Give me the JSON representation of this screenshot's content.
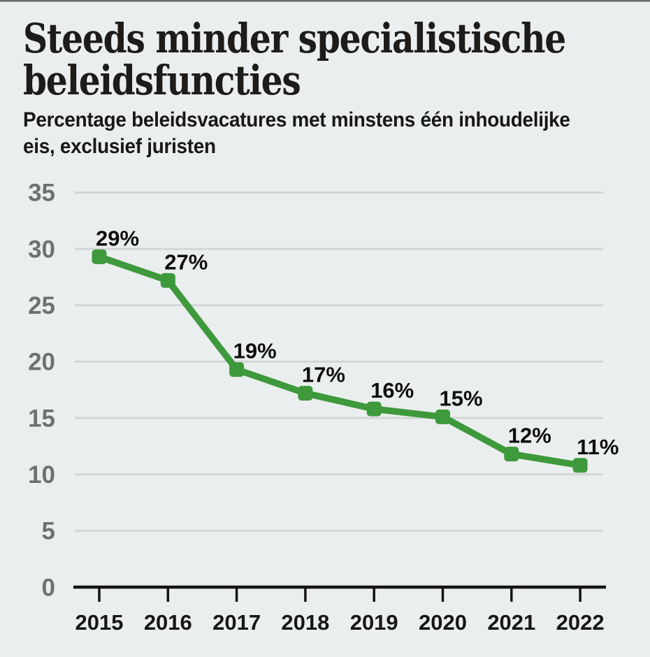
{
  "header": {
    "title_line1": "Steeds minder specialistische",
    "title_line2": "beleidsfuncties",
    "subtitle_line1": "Percentage beleidsvacatures met minstens één inhoudelijke",
    "subtitle_line2": "eis, exclusief juristen"
  },
  "colors": {
    "background": "#ebeeee",
    "topbar": "#667272",
    "line": "#3e993c",
    "marker": "#3e993c",
    "gridline": "#d2d6d5",
    "axis": "#141414",
    "y_tick_label": "#6c7272",
    "x_tick_label": "#161616",
    "point_label": "#0e0e0e"
  },
  "chart_data": {
    "type": "line",
    "title": "Steeds minder specialistische beleidsfuncties",
    "subtitle": "Percentage beleidsvacatures met minstens één inhoudelijke eis, exclusief juristen",
    "categories": [
      "2015",
      "2016",
      "2017",
      "2018",
      "2019",
      "2020",
      "2021",
      "2022"
    ],
    "series": [
      {
        "name": "Percentage beleidsvacatures met minstens één inhoudelijke eis, exclusief juristen",
        "values": [
          29.3,
          27.2,
          19.3,
          17.2,
          15.8,
          15.1,
          11.8,
          10.8
        ]
      }
    ],
    "point_labels": [
      "29%",
      "27%",
      "19%",
      "17%",
      "16%",
      "15%",
      "12%",
      "11%"
    ],
    "xlabel": "",
    "ylabel": "",
    "ylim": [
      0,
      35
    ],
    "yticks": [
      0,
      5,
      10,
      15,
      20,
      25,
      30,
      35
    ],
    "grid": "horizontal",
    "legend": "none",
    "marker": "square",
    "line_color": "#3e993c"
  }
}
